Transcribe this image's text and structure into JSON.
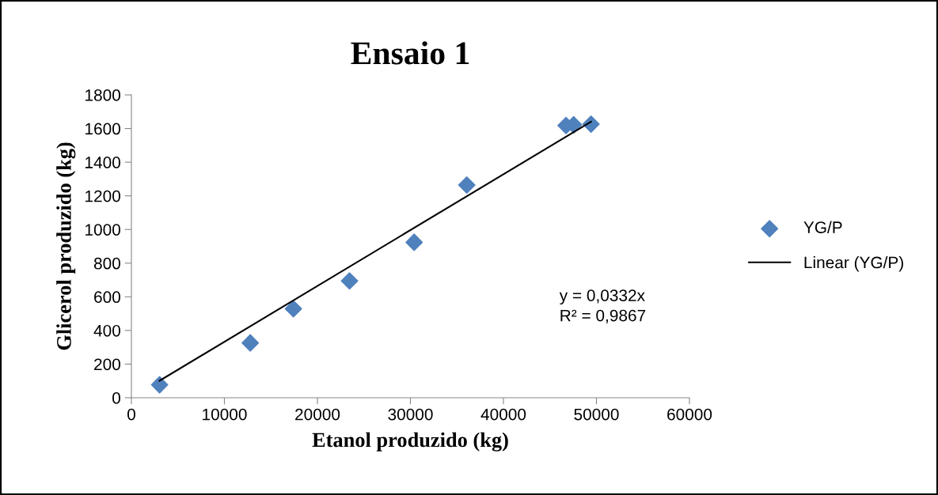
{
  "chart_data": {
    "type": "scatter",
    "title": "Ensaio 1",
    "xlabel": "Etanol produzido (kg)",
    "ylabel": "Glicerol produzido (kg)",
    "x": [
      3030,
      12780,
      17420,
      23450,
      30400,
      36060,
      46730,
      47550,
      49420
    ],
    "series": [
      {
        "name": "YG/P",
        "color": "#4f81bd",
        "values": [
          77,
          326,
          529,
          694,
          924,
          1264,
          1618,
          1622,
          1626
        ],
        "marker": "diamond"
      },
      {
        "name": "Linear (YG/P)",
        "type": "line",
        "color": "#000000",
        "x": [
          3030,
          49420
        ],
        "values": [
          101,
          1641
        ],
        "marker": "none",
        "line_style": "solid"
      }
    ],
    "annotations": [
      "y = 0,0332x\nR² = 0,9867"
    ],
    "xlim": [
      0,
      60000
    ],
    "xticks": [
      0,
      10000,
      20000,
      30000,
      40000,
      50000,
      60000
    ],
    "ylim": [
      0,
      1800
    ],
    "yticks": [
      0,
      200,
      400,
      600,
      800,
      1000,
      1200,
      1400,
      1600,
      1800
    ],
    "grid": false,
    "legend": "right"
  }
}
